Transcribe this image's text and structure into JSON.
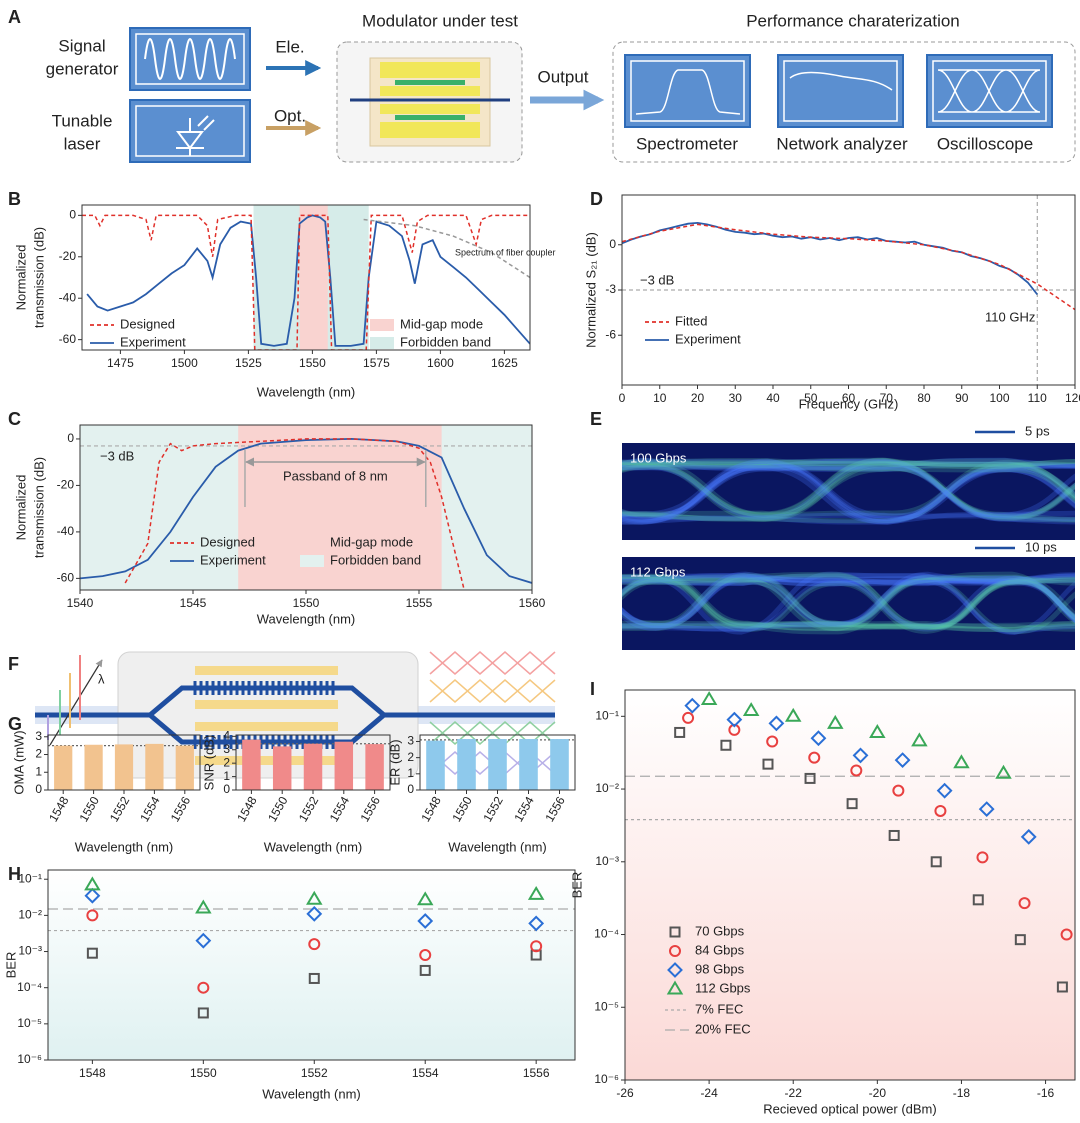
{
  "diagram_a": {
    "panel": "A",
    "signal_generator": [
      "Signal",
      "generator"
    ],
    "tunable_laser": [
      "Tunable",
      "laser"
    ],
    "ele": "Ele.",
    "opt": "Opt.",
    "modulator_title": "Modulator under test",
    "output": "Output",
    "performance_title": "Performance charaterization",
    "instruments": [
      "Spectrometer",
      "Network analyzer",
      "Oscilloscope"
    ]
  },
  "eye_diagrams": {
    "panel": "E",
    "eyes": [
      {
        "rate": "100 Gbps",
        "scale": "5 ps"
      },
      {
        "rate": "112 Gbps",
        "scale": "10 ps"
      }
    ]
  },
  "diagram_f": {
    "panel": "F",
    "lambda": "λ"
  },
  "chart_data": [
    {
      "type": "line",
      "panel": "B",
      "xlabel": "Wavelength (nm)",
      "ylabel": [
        "Normalized",
        "transmission (dB)"
      ],
      "xlim": [
        1460,
        1635
      ],
      "ylim": [
        -65,
        5
      ],
      "xticks": [
        1475,
        1500,
        1525,
        1550,
        1575,
        1600,
        1625
      ],
      "yticks": [
        0,
        -20,
        -40,
        -60
      ],
      "bands": [
        {
          "name": "Mid-gap mode",
          "range": [
            1545,
            1556
          ],
          "color": "#f9d3d0"
        },
        {
          "name": "Forbidden band",
          "range": [
            1527,
            1572
          ],
          "color": "#d6ece9"
        }
      ],
      "series": [
        {
          "name": "Experiment",
          "color": "#2a5caa",
          "x": [
            1462,
            1466,
            1470,
            1475,
            1480,
            1485,
            1490,
            1495,
            1500,
            1505,
            1509,
            1511,
            1514,
            1518,
            1522,
            1526,
            1528,
            1530,
            1535,
            1540,
            1543,
            1545,
            1548,
            1550,
            1553,
            1555,
            1557,
            1559,
            1565,
            1570,
            1572,
            1575,
            1580,
            1585,
            1588,
            1590,
            1593,
            1597,
            1600,
            1605,
            1610,
            1615,
            1620,
            1625,
            1630,
            1635
          ],
          "values": [
            -38,
            -44,
            -46,
            -44,
            -42,
            -38,
            -33,
            -28,
            -24,
            -16,
            -22,
            -30,
            -14,
            -6,
            -3,
            -4,
            -30,
            -62,
            -63,
            -62,
            -40,
            -4,
            -1,
            0,
            -1,
            -3,
            -30,
            -63,
            -63,
            -62,
            -30,
            -3,
            -5,
            -10,
            -22,
            -33,
            -14,
            -12,
            -20,
            -25,
            -30,
            -36,
            -42,
            -48,
            -55,
            -62
          ]
        },
        {
          "name": "Designed",
          "color": "#e0302a",
          "dash": true,
          "x": [
            1460,
            1465,
            1467,
            1469,
            1480,
            1485,
            1487,
            1489,
            1505,
            1509,
            1511,
            1513,
            1520,
            1526,
            1527.5,
            1544,
            1545,
            1556,
            1557.5,
            1571,
            1573,
            1585,
            1589,
            1591,
            1595,
            1610,
            1614,
            1616,
            1620,
            1635
          ],
          "values": [
            0,
            0,
            -5,
            0,
            0,
            -2,
            -12,
            0,
            0,
            -5,
            -20,
            -2,
            0,
            0,
            -65,
            -65,
            0,
            0,
            -65,
            -65,
            0,
            0,
            -18,
            -3,
            0,
            0,
            -14,
            -2,
            0,
            0
          ]
        },
        {
          "name": "Spectrum of fiber coupler",
          "legend": false,
          "color": "#999999",
          "dash": true,
          "x": [
            1570,
            1590,
            1605,
            1620,
            1635
          ],
          "values": [
            -2,
            -5,
            -10,
            -18,
            -30
          ]
        }
      ]
    },
    {
      "type": "line",
      "panel": "C",
      "xlabel": "Wavelength (nm)",
      "ylabel": [
        "Normalized",
        "transmission (dB)"
      ],
      "xlim": [
        1540,
        1560
      ],
      "ylim": [
        -65,
        6
      ],
      "xticks": [
        1540,
        1545,
        1550,
        1555,
        1560
      ],
      "yticks": [
        0,
        -20,
        -40,
        -60
      ],
      "bands": [
        {
          "name": "Mid-gap mode",
          "range": [
            1547,
            1556
          ],
          "color": "#f9d3d0"
        },
        {
          "name": "Forbidden band",
          "range": [
            1540,
            1560
          ],
          "color": "#e3f1ef"
        }
      ],
      "series": [
        {
          "name": "Experiment",
          "color": "#2a5caa",
          "x": [
            1540,
            1541,
            1542,
            1543,
            1544,
            1545,
            1546,
            1547,
            1548,
            1550,
            1552,
            1554,
            1555,
            1556,
            1557,
            1558,
            1559,
            1560
          ],
          "values": [
            -60,
            -59,
            -57,
            -52,
            -40,
            -25,
            -12,
            -5,
            -2,
            -0.5,
            0,
            -1,
            -3,
            -8,
            -30,
            -50,
            -59,
            -62
          ]
        },
        {
          "name": "Designed",
          "color": "#e0302a",
          "dash": true,
          "x": [
            1542,
            1543,
            1543.5,
            1544,
            1544.5,
            1545,
            1546,
            1548,
            1550,
            1552,
            1554,
            1555,
            1555.5,
            1556,
            1556.5,
            1557
          ],
          "values": [
            -62,
            -45,
            -10,
            -2,
            -5,
            -3,
            -2,
            -1,
            0,
            0,
            -1,
            -4,
            -10,
            -25,
            -45,
            -65
          ]
        }
      ],
      "reference_lines": [
        {
          "axis": "y",
          "value": -3,
          "label": "−3 dB"
        }
      ],
      "annotation": {
        "text": "Passband of 8 nm",
        "range": [
          1547.3,
          1555.3
        ]
      }
    },
    {
      "type": "line",
      "panel": "D",
      "xlabel": "Frequency (GHz)",
      "ylabel": [
        "Normalized S₂₁ (dB)"
      ],
      "xlim": [
        0,
        120
      ],
      "ylim": [
        -9.3,
        3.3
      ],
      "xticks": [
        0,
        10,
        20,
        30,
        40,
        50,
        60,
        70,
        80,
        90,
        100,
        110,
        120
      ],
      "yticks": [
        0,
        -3,
        -6
      ],
      "series": [
        {
          "name": "Experiment",
          "color": "#2a5caa",
          "x": [
            0,
            2.5,
            5,
            7.5,
            10,
            12.5,
            15,
            17.5,
            20,
            22.5,
            25,
            27.5,
            30,
            32.5,
            35,
            37.5,
            40,
            42.5,
            45,
            47.5,
            50,
            52.5,
            55,
            57.5,
            60,
            62.5,
            65,
            67.5,
            70,
            72.5,
            75,
            77.5,
            80,
            82.5,
            85,
            87.5,
            90,
            92.5,
            95,
            97.5,
            100,
            102.5,
            105,
            107.5,
            110
          ],
          "values": [
            0.1,
            0.35,
            0.55,
            0.7,
            0.95,
            1.1,
            1.25,
            1.4,
            1.45,
            1.35,
            1.2,
            1.0,
            0.85,
            0.8,
            0.7,
            0.75,
            0.6,
            0.5,
            0.55,
            0.4,
            0.5,
            0.35,
            0.45,
            0.3,
            0.45,
            0.5,
            0.35,
            0.45,
            0.25,
            0.2,
            0.15,
            0.2,
            0.0,
            -0.1,
            -0.2,
            -0.4,
            -0.5,
            -0.75,
            -0.9,
            -1.1,
            -1.4,
            -1.6,
            -2.0,
            -2.5,
            -3.3
          ]
        },
        {
          "name": "Fitted",
          "color": "#e0302a",
          "dash": true,
          "x": [
            0,
            10,
            20,
            30,
            40,
            50,
            60,
            70,
            80,
            90,
            100,
            110,
            120
          ],
          "values": [
            0.2,
            0.9,
            1.35,
            1.0,
            0.7,
            0.5,
            0.4,
            0.25,
            0.0,
            -0.5,
            -1.3,
            -2.6,
            -4.3
          ]
        }
      ],
      "reference_lines": [
        {
          "axis": "y",
          "value": -3,
          "label": "−3 dB"
        },
        {
          "axis": "x",
          "value": 110,
          "label": "110 GHz"
        }
      ]
    },
    {
      "type": "bar",
      "panel": "G",
      "categories": [
        "1548",
        "1550",
        "1552",
        "1554",
        "1556"
      ],
      "values": [
        2.5,
        2.55,
        2.57,
        2.6,
        2.5
      ],
      "color": "#f2c38f",
      "ylim": [
        0,
        3.1
      ],
      "yticks": [
        0,
        1,
        2,
        3
      ],
      "ylabel": [
        "OMA (mW)"
      ],
      "xlabel": "Wavelength (nm)",
      "reference_lines": [
        {
          "axis": "y",
          "value": 2.5
        }
      ]
    },
    {
      "type": "bar",
      "categories": [
        "1548",
        "1550",
        "1552",
        "1554",
        "1556"
      ],
      "values": [
        3.75,
        3.25,
        3.45,
        3.6,
        3.42
      ],
      "color": "#f08a8a",
      "ylim": [
        0,
        4.1
      ],
      "yticks": [
        0,
        1,
        2,
        3,
        4
      ],
      "ylabel": [
        "SNR (dB)"
      ],
      "xlabel": "Wavelength (nm)",
      "reference_lines": [
        {
          "axis": "y",
          "value": 3.45
        }
      ]
    },
    {
      "type": "bar",
      "categories": [
        "1548",
        "1550",
        "1552",
        "1554",
        "1556"
      ],
      "values": [
        3.05,
        3.15,
        3.15,
        3.15,
        3.15
      ],
      "color": "#8ec9ec",
      "ylim": [
        0,
        3.4
      ],
      "yticks": [
        0,
        1,
        2,
        3
      ],
      "ylabel": [
        "ER (dB)"
      ],
      "xlabel": "Wavelength (nm)",
      "reference_lines": [
        {
          "axis": "y",
          "value": 3.1
        }
      ]
    },
    {
      "type": "scatter",
      "panel": "H",
      "xlabel": "Wavelength (nm)",
      "ylabel": [
        "BER"
      ],
      "x": [
        1548,
        1550,
        1552,
        1554,
        1556
      ],
      "xlim": [
        1547.2,
        1556.7
      ],
      "xticks": [
        1548,
        1550,
        1552,
        1554,
        1556
      ],
      "ylog": true,
      "ylim": [
        1e-06,
        0.18
      ],
      "yticks": [
        {
          "value": 0.1,
          "label": "10⁻¹"
        },
        {
          "value": 0.01,
          "label": "10⁻²"
        },
        {
          "value": 0.001,
          "label": "10⁻³"
        },
        {
          "value": 0.0001,
          "label": "10⁻⁴"
        },
        {
          "value": 1e-05,
          "label": "10⁻⁵"
        },
        {
          "value": 1e-06,
          "label": "10⁻⁶"
        }
      ],
      "series": [
        {
          "marker": "square",
          "color": "#555555",
          "values": [
            0.0009,
            2e-05,
            0.00018,
            0.0003,
            0.0008
          ]
        },
        {
          "marker": "circle",
          "color": "#e84040",
          "values": [
            0.01,
            0.0001,
            0.0016,
            0.0008,
            0.0014
          ]
        },
        {
          "marker": "diamond",
          "color": "#2a6fd6",
          "values": [
            0.035,
            0.002,
            0.011,
            0.007,
            0.006
          ]
        },
        {
          "marker": "triangle",
          "color": "#3aa858",
          "values": [
            0.07,
            0.016,
            0.028,
            0.027,
            0.038
          ]
        }
      ],
      "reference_lines": [
        {
          "axis": "y",
          "value": 0.0038
        },
        {
          "axis": "y",
          "value": 0.015
        }
      ]
    },
    {
      "type": "scatter",
      "panel": "I",
      "xlabel": "Recieved optical power (dBm)",
      "ylabel": [
        "BER"
      ],
      "xlim": [
        -26,
        -15.3
      ],
      "xticks": [
        -26,
        -24,
        -22,
        -20,
        -18,
        -16
      ],
      "ylog": true,
      "ylim": [
        1e-06,
        0.23
      ],
      "yticks": [
        {
          "value": 0.1,
          "label": "10⁻¹"
        },
        {
          "value": 0.01,
          "label": "10⁻²"
        },
        {
          "value": 0.001,
          "label": "10⁻³"
        },
        {
          "value": 0.0001,
          "label": "10⁻⁴"
        },
        {
          "value": 1e-05,
          "label": "10⁻⁵"
        },
        {
          "value": 1e-06,
          "label": "10⁻⁶"
        }
      ],
      "series": [
        {
          "name": "70 Gbps",
          "marker": "square",
          "color": "#555555",
          "x": [
            -24.7,
            -23.6,
            -22.6,
            -21.6,
            -20.6,
            -19.6,
            -18.6,
            -17.6,
            -16.6,
            -15.6
          ],
          "values": [
            0.06,
            0.04,
            0.022,
            0.014,
            0.0063,
            0.0023,
            0.001,
            0.0003,
            8.5e-05,
            1.9e-05
          ]
        },
        {
          "name": "84 Gbps",
          "marker": "circle",
          "color": "#e84040",
          "x": [
            -24.5,
            -23.4,
            -22.5,
            -21.5,
            -20.5,
            -19.5,
            -18.5,
            -17.5,
            -16.5,
            -15.5
          ],
          "values": [
            0.095,
            0.065,
            0.045,
            0.027,
            0.018,
            0.0095,
            0.005,
            0.00115,
            0.00027,
            0.0001
          ]
        },
        {
          "name": "98 Gbps",
          "marker": "diamond",
          "color": "#2a6fd6",
          "x": [
            -24.4,
            -23.4,
            -22.4,
            -21.4,
            -20.4,
            -19.4,
            -18.4,
            -17.4,
            -16.4
          ],
          "values": [
            0.14,
            0.09,
            0.08,
            0.05,
            0.029,
            0.025,
            0.0095,
            0.0053,
            0.0022
          ]
        },
        {
          "name": "112 Gbps",
          "marker": "triangle",
          "color": "#3aa858",
          "x": [
            -24,
            -23,
            -22,
            -21,
            -20,
            -19,
            -18,
            -17
          ],
          "values": [
            0.17,
            0.12,
            0.1,
            0.08,
            0.06,
            0.046,
            0.023,
            0.0165
          ]
        }
      ],
      "reference_lines": [
        {
          "axis": "y",
          "value": 0.0038,
          "name": "7% FEC"
        },
        {
          "axis": "y",
          "value": 0.015,
          "name": "20% FEC"
        }
      ]
    }
  ]
}
